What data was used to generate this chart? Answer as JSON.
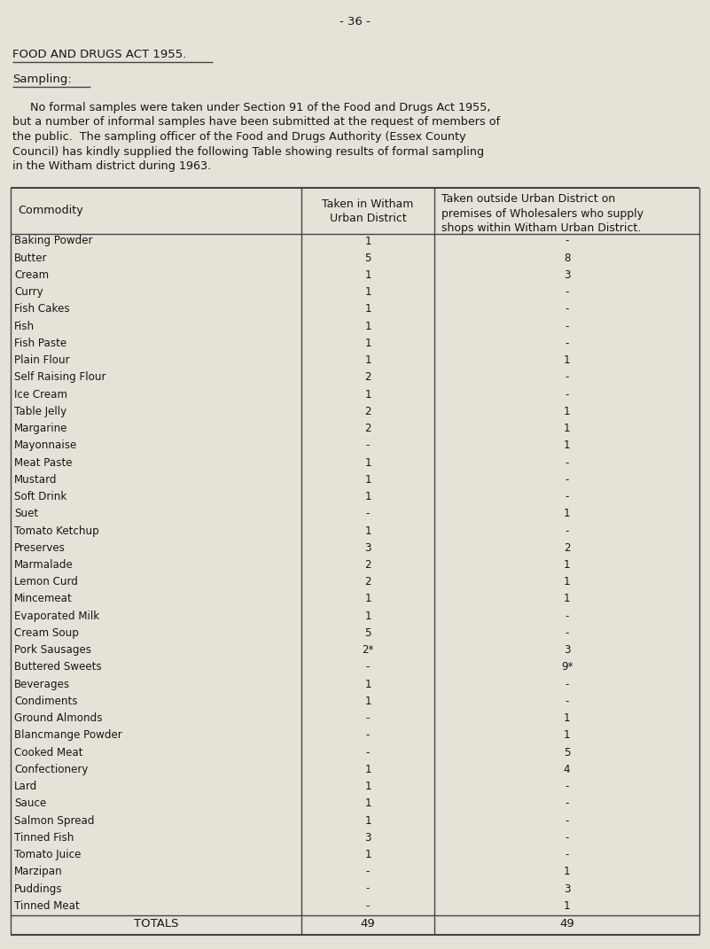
{
  "page_number": "- 36 -",
  "title": "FOOD AND DRUGS ACT 1955.",
  "section_heading": "Sampling:",
  "body_text": [
    "     No formal samples were taken under Section 91 of the Food and Drugs Act 1955,",
    "but a number of informal samples have been submitted at the request of members of",
    "the public.  The sampling officer of the Food and Drugs Authority (Essex County",
    "Council) has kindly supplied the following Table showing results of formal sampling",
    "in the Witham district during 1963."
  ],
  "col1_header": "Commodity",
  "col2_header": "Taken in Witham\nUrban District",
  "col3_header": "Taken outside Urban District on\npremises of Wholesalers who supply\nshops within Witham Urban District.",
  "rows": [
    [
      "Baking Powder",
      "1",
      "-"
    ],
    [
      "Butter",
      "5",
      "8"
    ],
    [
      "Cream",
      "1",
      "3"
    ],
    [
      "Curry",
      "1",
      "-"
    ],
    [
      "Fish Cakes",
      "1",
      "-"
    ],
    [
      "Fish",
      "1",
      "-"
    ],
    [
      "Fish Paste",
      "1",
      "-"
    ],
    [
      "Plain Flour",
      "1",
      "1"
    ],
    [
      "Self Raising Flour",
      "2",
      "-"
    ],
    [
      "Ice Cream",
      "1",
      "-"
    ],
    [
      "Table Jelly",
      "2",
      "1"
    ],
    [
      "Margarine",
      "2",
      "1"
    ],
    [
      "Mayonnaise",
      "-",
      "1"
    ],
    [
      "Meat Paste",
      "1",
      "-"
    ],
    [
      "Mustard",
      "1",
      "-"
    ],
    [
      "Soft Drink",
      "1",
      "-"
    ],
    [
      "Suet",
      "-",
      "1"
    ],
    [
      "Tomato Ketchup",
      "1",
      "-"
    ],
    [
      "Preserves",
      "3",
      "2"
    ],
    [
      "Marmalade",
      "2",
      "1"
    ],
    [
      "Lemon Curd",
      "2",
      "1"
    ],
    [
      "Mincemeat",
      "1",
      "1"
    ],
    [
      "Evaporated Milk",
      "1",
      "-"
    ],
    [
      "Cream Soup",
      "5",
      "-"
    ],
    [
      "Pork Sausages",
      "2*",
      "3"
    ],
    [
      "Buttered Sweets",
      "-",
      "9*"
    ],
    [
      "Beverages",
      "1",
      "-"
    ],
    [
      "Condiments",
      "1",
      "-"
    ],
    [
      "Ground Almonds",
      "-",
      "1"
    ],
    [
      "Blancmange Powder",
      "-",
      "1"
    ],
    [
      "Cooked Meat",
      "-",
      "5"
    ],
    [
      "Confectionery",
      "1",
      "4"
    ],
    [
      "Lard",
      "1",
      "-"
    ],
    [
      "Sauce",
      "1",
      "-"
    ],
    [
      "Salmon Spread",
      "1",
      "-"
    ],
    [
      "Tinned Fish",
      "3",
      "-"
    ],
    [
      "Tomato Juice",
      "1",
      "-"
    ],
    [
      "Marzipan",
      "-",
      "1"
    ],
    [
      "Puddings",
      "-",
      "3"
    ],
    [
      "Tinned Meat",
      "-",
      "1"
    ]
  ],
  "totals_label": "TOTALS",
  "total_col2": "49",
  "total_col3": "49",
  "bg_color": "#e6e2d8",
  "line_color": "#444444",
  "text_color": "#1a1510",
  "font_size_body": 9.5,
  "font_size_table": 9.0,
  "font_size_small": 8.5
}
